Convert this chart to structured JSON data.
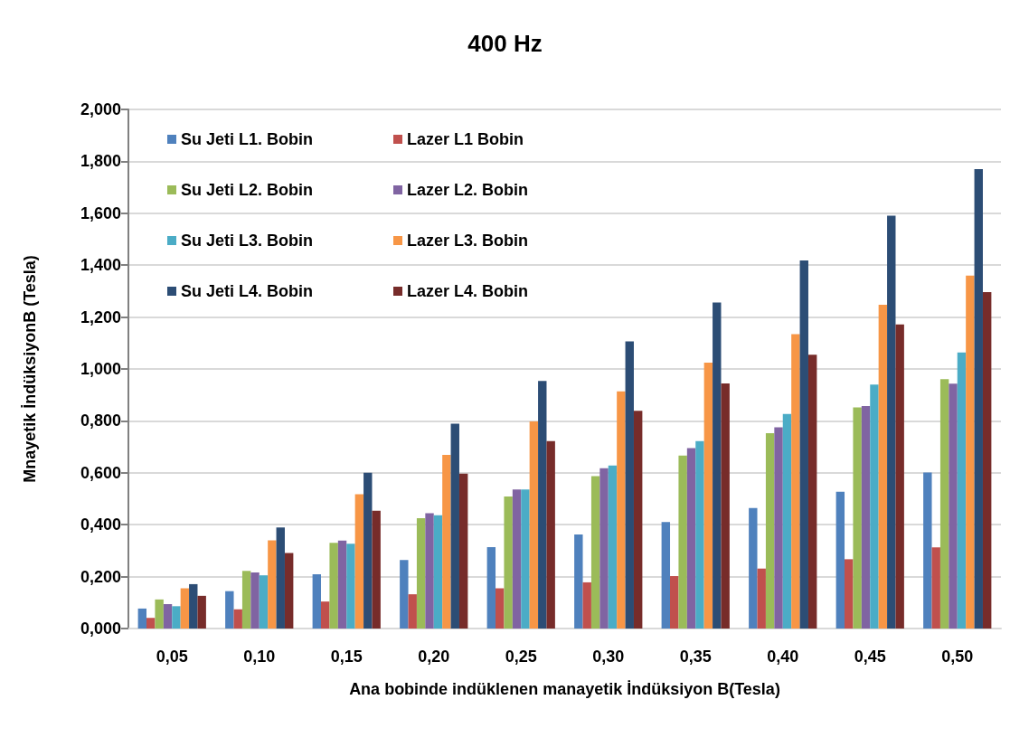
{
  "chart_data": {
    "type": "bar",
    "title": "400 Hz",
    "xlabel": "Ana bobinde indüklenen manayetik İndüksiyon B(Tesla)",
    "ylabel": "Mnayetik İndüksiyonB (Tesla)",
    "categories": [
      "0,05",
      "0,10",
      "0,15",
      "0,20",
      "0,25",
      "0,30",
      "0,35",
      "0,40",
      "0,45",
      "0,50"
    ],
    "series": [
      {
        "name": "Su Jeti L1. Bobin",
        "color": "#4f81bd",
        "values": [
          0.077,
          0.144,
          0.209,
          0.264,
          0.314,
          0.362,
          0.41,
          0.464,
          0.527,
          0.601
        ]
      },
      {
        "name": "Lazer L1 Bobin",
        "color": "#c0504d",
        "values": [
          0.041,
          0.074,
          0.104,
          0.132,
          0.155,
          0.178,
          0.202,
          0.231,
          0.267,
          0.313
        ]
      },
      {
        "name": "Su Jeti L2. Bobin",
        "color": "#9bbb59",
        "values": [
          0.112,
          0.222,
          0.33,
          0.425,
          0.509,
          0.587,
          0.666,
          0.753,
          0.852,
          0.961
        ]
      },
      {
        "name": "Lazer L2. Bobin",
        "color": "#8064a2",
        "values": [
          0.094,
          0.216,
          0.339,
          0.444,
          0.536,
          0.618,
          0.695,
          0.775,
          0.857,
          0.943
        ]
      },
      {
        "name": "Su Jeti L3. Bobin",
        "color": "#4bacc6",
        "values": [
          0.086,
          0.205,
          0.327,
          0.436,
          0.536,
          0.628,
          0.722,
          0.827,
          0.94,
          1.064
        ]
      },
      {
        "name": "Lazer L3. Bobin",
        "color": "#f79646",
        "values": [
          0.155,
          0.34,
          0.517,
          0.669,
          0.798,
          0.914,
          1.024,
          1.134,
          1.247,
          1.36
        ]
      },
      {
        "name": "Su Jeti L4. Bobin",
        "color": "#2c4d75",
        "values": [
          0.171,
          0.389,
          0.6,
          0.789,
          0.954,
          1.106,
          1.256,
          1.418,
          1.591,
          1.77
        ]
      },
      {
        "name": "Lazer L4. Bobin",
        "color": "#772c2a",
        "values": [
          0.126,
          0.291,
          0.454,
          0.597,
          0.722,
          0.839,
          0.944,
          1.055,
          1.172,
          1.296
        ]
      }
    ],
    "ylim": [
      0,
      2
    ],
    "yticks": [
      {
        "value": 0,
        "label": "0,000"
      },
      {
        "value": 0.2,
        "label": "0,200"
      },
      {
        "value": 0.4,
        "label": "0,400"
      },
      {
        "value": 0.6,
        "label": "0,600"
      },
      {
        "value": 0.8,
        "label": "0,800"
      },
      {
        "value": 1,
        "label": "1,000"
      },
      {
        "value": 1.2,
        "label": "1,200"
      },
      {
        "value": 1.4,
        "label": "1,400"
      },
      {
        "value": 1.6,
        "label": "1,600"
      },
      {
        "value": 1.8,
        "label": "1,800"
      },
      {
        "value": 2,
        "label": "2,000"
      }
    ],
    "grid": "y",
    "legend": "top left"
  }
}
